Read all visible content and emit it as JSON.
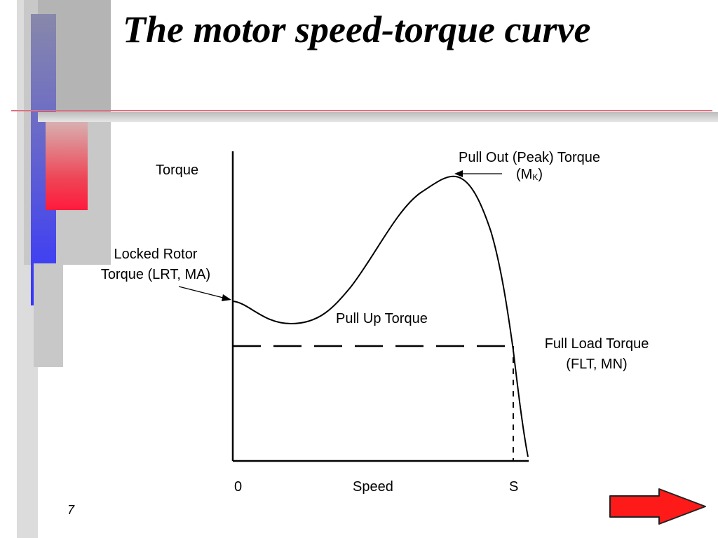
{
  "slide": {
    "title": "The motor speed-torque curve",
    "page_number": "7"
  },
  "diagram": {
    "y_axis_label": "Torque",
    "x_axis_label": "Speed",
    "x_origin_label": "0",
    "x_end_label": "S",
    "pull_out_label": "Pull Out (Peak) Torque",
    "pull_out_symbol_prefix": "(M",
    "pull_out_symbol_sub": "K",
    "pull_out_symbol_suffix": ")",
    "locked_rotor_line1": "Locked Rotor",
    "locked_rotor_line2": "Torque (LRT, MA)",
    "pull_up_label": "Pull Up Torque",
    "full_load_line1": "Full Load Torque",
    "full_load_line2": "(FLT, MN)"
  },
  "colors": {
    "accent_red": "#ff1a3c",
    "accent_blue": "#3333ff",
    "arrow_fill": "#ff1a1a",
    "gray_light": "#d9d9d9",
    "gray_mid": "#b3b3b3",
    "gray_dark": "#999999"
  },
  "icons": {
    "next": "right-arrow-icon"
  }
}
